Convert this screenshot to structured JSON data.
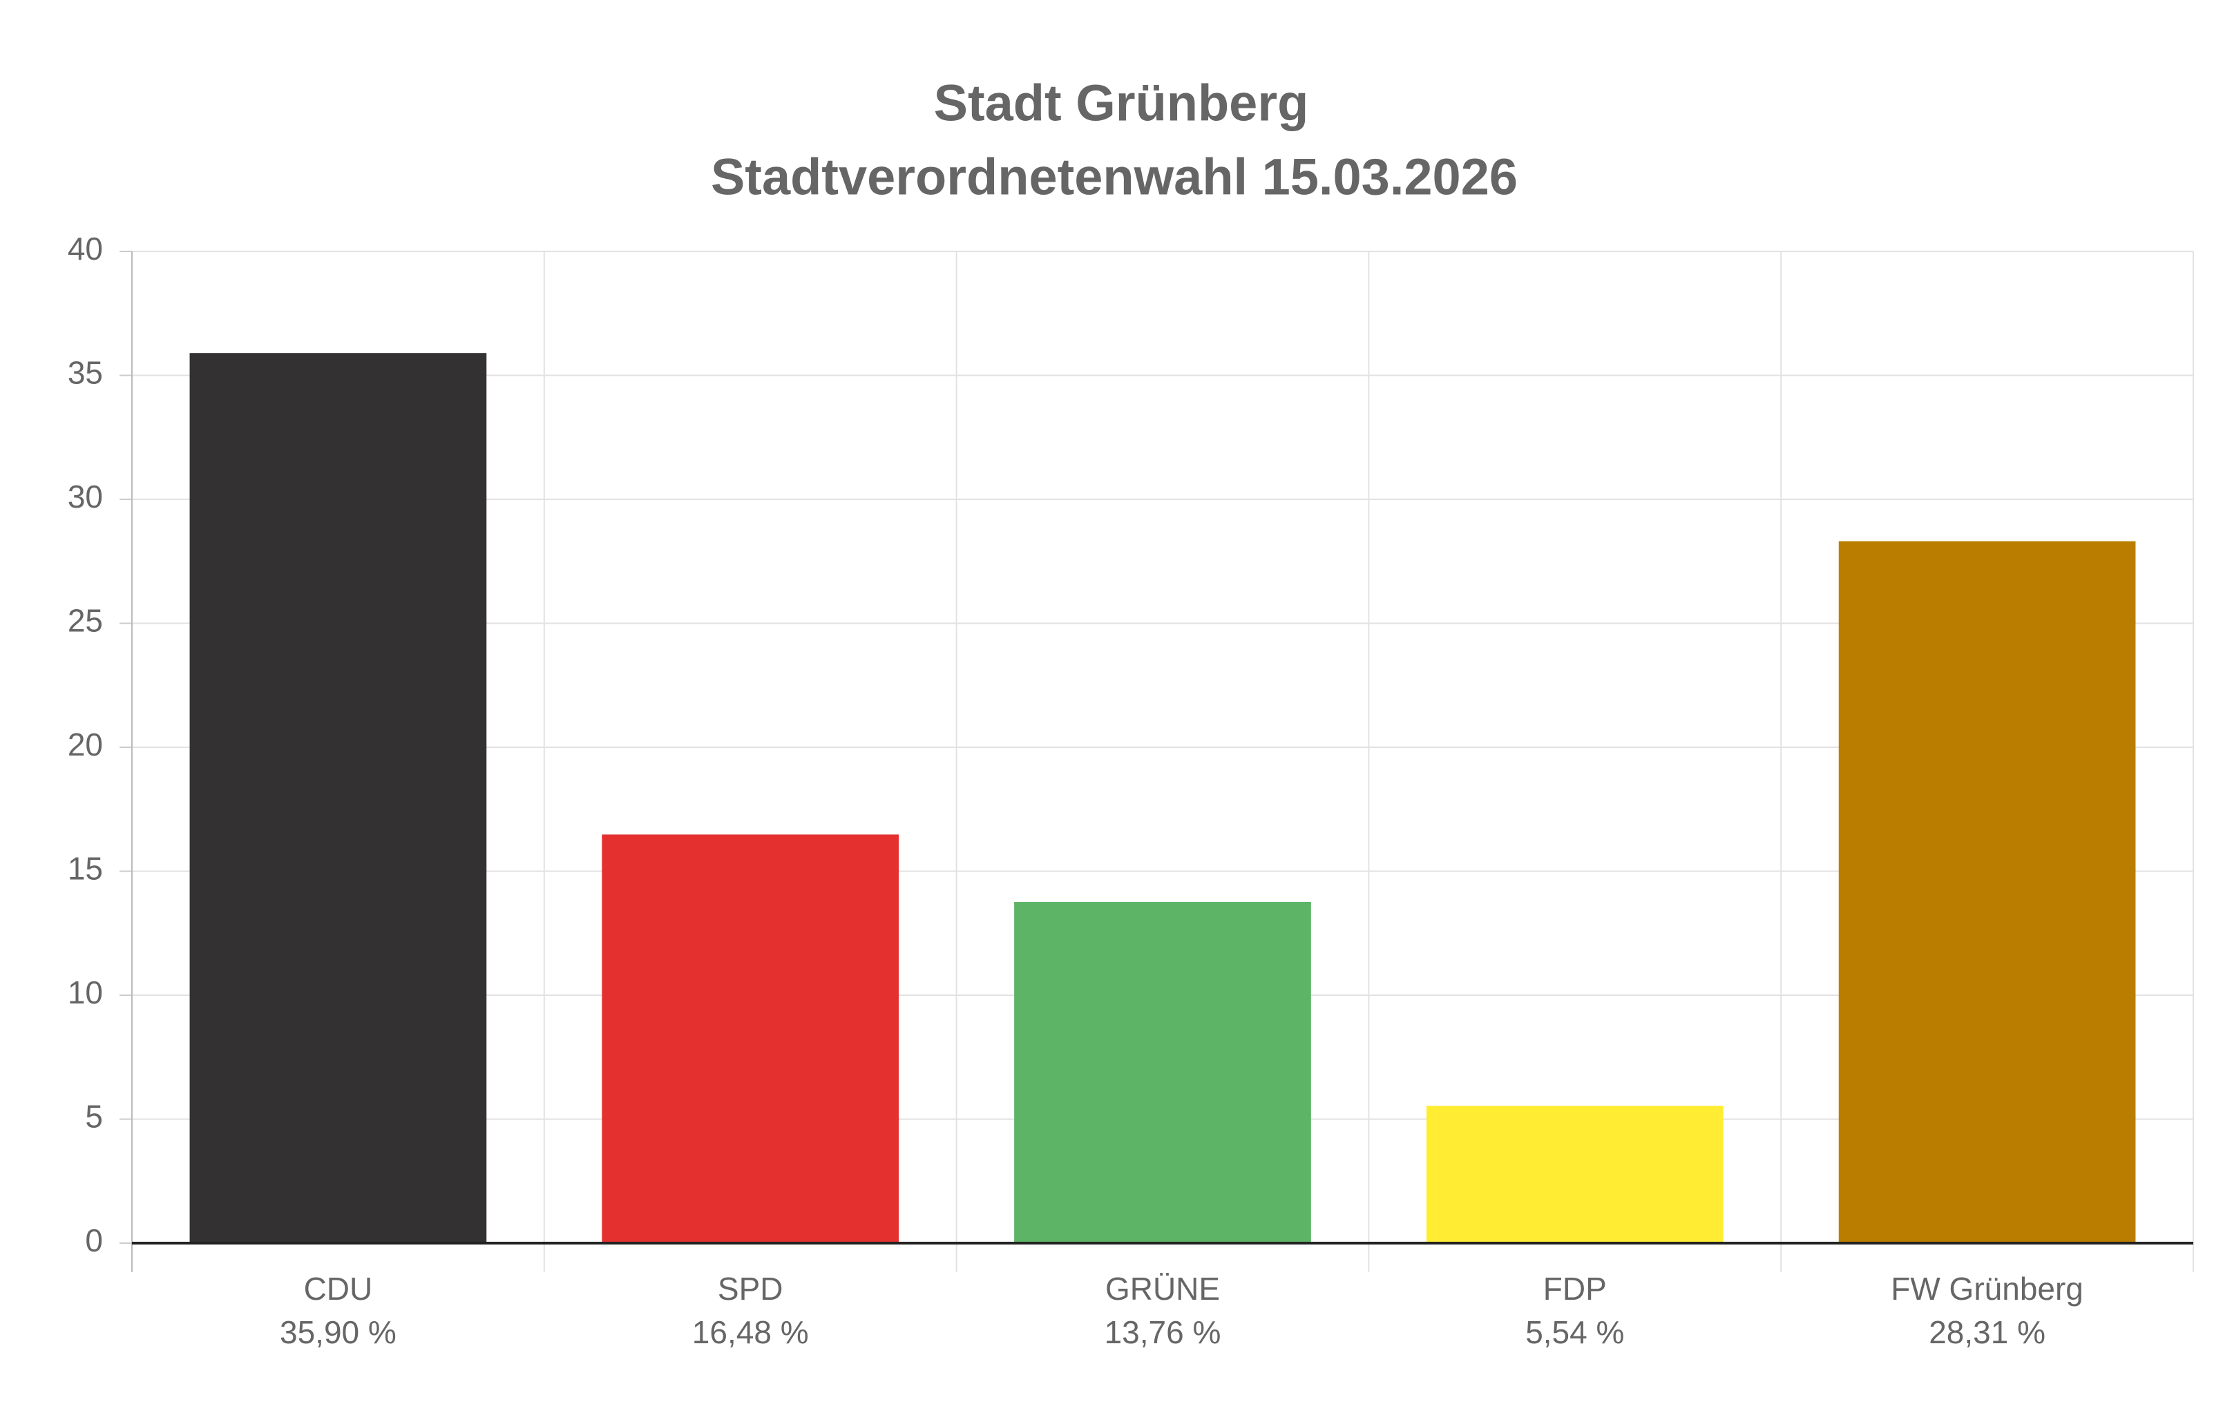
{
  "chart_data": {
    "type": "bar",
    "title": "Stadt Grünberg",
    "subtitle": "Stadtverordnetenwahl 15.03.2026",
    "categories": [
      "CDU",
      "SPD",
      "GRÜNE",
      "FDP",
      "FW Grünberg"
    ],
    "values": [
      35.9,
      16.48,
      13.76,
      5.54,
      28.31
    ],
    "value_labels": [
      "35,90 %",
      "16,48 %",
      "13,76 %",
      "5,54 %",
      "28,31 %"
    ],
    "colors": [
      "#333132",
      "#e53030",
      "#5db366",
      "#ffec33",
      "#bb7d00"
    ],
    "ylim": [
      0,
      40
    ],
    "yticks": [
      0,
      5,
      10,
      15,
      20,
      25,
      30,
      35,
      40
    ],
    "grid": true
  }
}
